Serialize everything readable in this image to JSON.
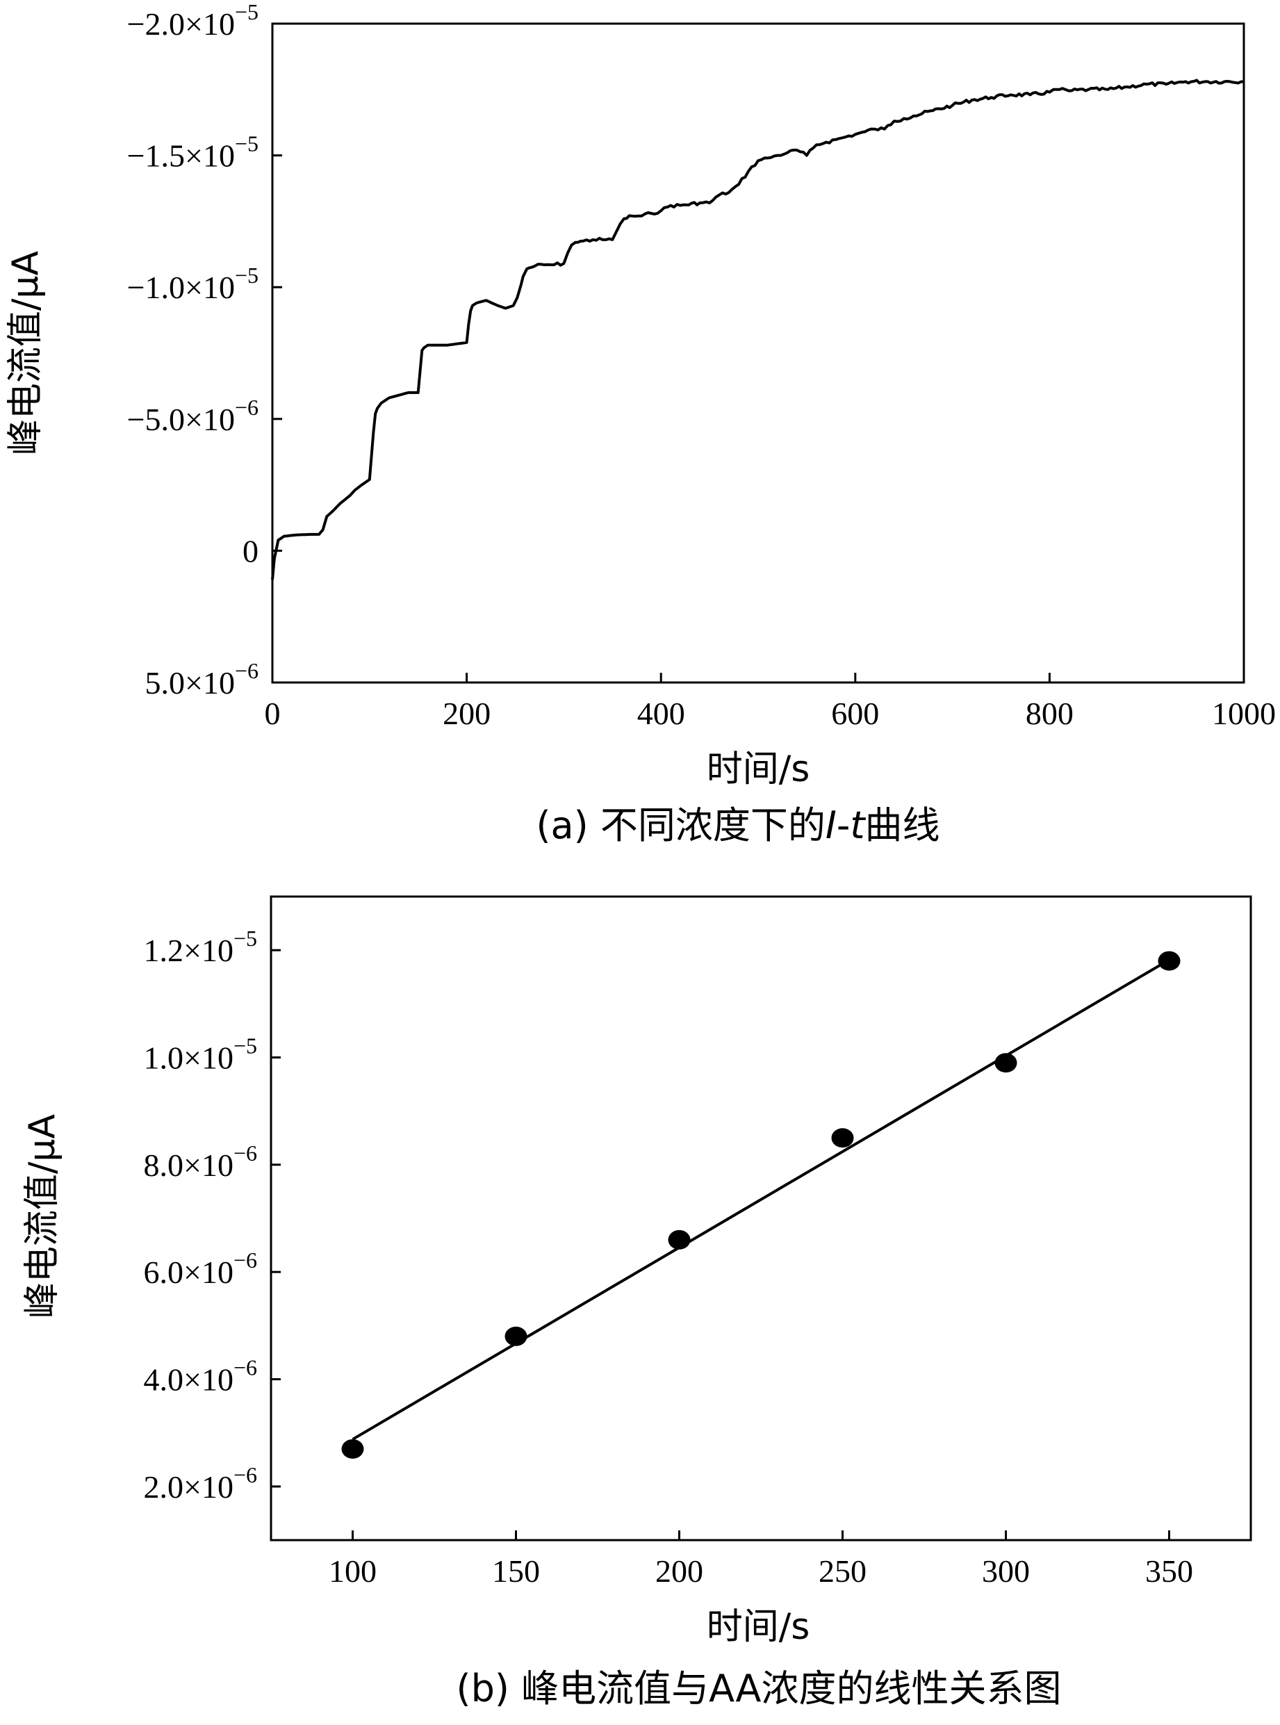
{
  "figure": {
    "captions": [
      {
        "prefix": "(a) 不同浓度下的",
        "italic_a": "I",
        "dash": "-",
        "italic_b": "t",
        "suffix": "曲线"
      },
      {
        "prefix": "(b) 峰电流值与AA浓度的线性关系图"
      }
    ]
  },
  "chart_data": [
    {
      "type": "line",
      "xlabel": "时间/s",
      "ylabel": "峰电流值/μA",
      "xlim": [
        0,
        1000
      ],
      "ylim_top_to_bottom": [
        -2e-05,
        5e-06
      ],
      "y_inverted": true,
      "x_ticks": [
        {
          "value": 0,
          "label": "0"
        },
        {
          "value": 200,
          "label": "200"
        },
        {
          "value": 400,
          "label": "400"
        },
        {
          "value": 600,
          "label": "600"
        },
        {
          "value": 800,
          "label": "800"
        },
        {
          "value": 1000,
          "label": "1000"
        }
      ],
      "y_ticks": [
        {
          "value": -2e-05,
          "mantissa": "−2.0×10",
          "exp": "−5"
        },
        {
          "value": -1.5e-05,
          "mantissa": "−1.5×10",
          "exp": "−5"
        },
        {
          "value": -1e-05,
          "mantissa": "−1.0×10",
          "exp": "−5"
        },
        {
          "value": -5e-06,
          "mantissa": "−5.0×10",
          "exp": "−6"
        },
        {
          "value": 0,
          "mantissa": "0",
          "exp": ""
        },
        {
          "value": 5e-06,
          "mantissa": "5.0×10",
          "exp": "−6"
        }
      ],
      "series": [
        {
          "x": [
            0,
            2,
            6,
            12,
            25,
            40,
            48,
            52,
            56,
            62,
            70,
            80,
            85,
            92,
            100,
            104,
            106,
            108,
            112,
            120,
            130,
            140,
            150,
            152,
            154,
            156,
            160,
            170,
            180,
            190,
            200,
            202,
            204,
            206,
            210,
            220,
            232,
            240,
            248,
            252,
            256,
            258,
            262,
            270,
            280,
            290,
            300,
            304,
            308,
            312,
            320,
            330,
            340,
            350,
            354,
            358,
            362,
            370,
            380,
            390,
            400,
            410,
            420,
            440,
            450,
            460,
            470,
            480,
            490,
            500,
            510,
            520,
            530,
            540,
            550,
            560,
            570,
            580,
            590,
            600,
            610,
            620,
            630,
            640,
            650,
            660,
            680,
            700,
            720,
            740,
            760,
            780,
            800,
            802,
            804,
            810,
            820,
            840,
            860,
            880,
            900,
            920,
            940,
            960,
            980,
            1000
          ],
          "y": [
            1.1e-06,
            3e-07,
            -4e-07,
            -5.5e-07,
            -6e-07,
            -6.2e-07,
            -6.2e-07,
            -8e-07,
            -1.3e-06,
            -1.5e-06,
            -1.8e-06,
            -2.1e-06,
            -2.3e-06,
            -2.5e-06,
            -2.7e-06,
            -4.5e-06,
            -5.2e-06,
            -5.4e-06,
            -5.6e-06,
            -5.8e-06,
            -5.9e-06,
            -6e-06,
            -6e-06,
            -6.8e-06,
            -7.6e-06,
            -7.7e-06,
            -7.8e-06,
            -7.8e-06,
            -7.8e-06,
            -7.85e-06,
            -7.9e-06,
            -8.6e-06,
            -9.1e-06,
            -9.3e-06,
            -9.4e-06,
            -9.5e-06,
            -9.3e-06,
            -9.2e-06,
            -9.3e-06,
            -9.6e-06,
            -1.01e-05,
            -1.04e-05,
            -1.07e-05,
            -1.08e-05,
            -1.085e-05,
            -1.085e-05,
            -1.09e-05,
            -1.13e-05,
            -1.16e-05,
            -1.17e-05,
            -1.175e-05,
            -1.18e-05,
            -1.18e-05,
            -1.18e-05,
            -1.21e-05,
            -1.24e-05,
            -1.26e-05,
            -1.27e-05,
            -1.27e-05,
            -1.28e-05,
            -1.29e-05,
            -1.31e-05,
            -1.31e-05,
            -1.32e-05,
            -1.32e-05,
            -1.35e-05,
            -1.36e-05,
            -1.39e-05,
            -1.44e-05,
            -1.48e-05,
            -1.49e-05,
            -1.5e-05,
            -1.51e-05,
            -1.52e-05,
            -1.5e-05,
            -1.54e-05,
            -1.55e-05,
            -1.56e-05,
            -1.57e-05,
            -1.58e-05,
            -1.59e-05,
            -1.6e-05,
            -1.6e-05,
            -1.63e-05,
            -1.64e-05,
            -1.65e-05,
            -1.67e-05,
            -1.69e-05,
            -1.71e-05,
            -1.72e-05,
            -1.73e-05,
            -1.73e-05,
            -1.74e-05,
            -1.745e-05,
            -1.75e-05,
            -1.75e-05,
            -1.745e-05,
            -1.75e-05,
            -1.75e-05,
            -1.76e-05,
            -1.77e-05,
            -1.77e-05,
            -1.78e-05,
            -1.78e-05,
            -1.78e-05,
            -1.78e-05
          ]
        }
      ]
    },
    {
      "type": "scatter",
      "xlabel": "时间/s",
      "ylabel": "峰电流值/μA",
      "xlim": [
        75,
        375
      ],
      "ylim": [
        1e-06,
        1.3e-05
      ],
      "x_ticks": [
        {
          "value": 100,
          "label": "100"
        },
        {
          "value": 150,
          "label": "150"
        },
        {
          "value": 200,
          "label": "200"
        },
        {
          "value": 250,
          "label": "250"
        },
        {
          "value": 300,
          "label": "300"
        },
        {
          "value": 350,
          "label": "350"
        }
      ],
      "y_ticks": [
        {
          "value": 2e-06,
          "mantissa": "2.0×10",
          "exp": "−6"
        },
        {
          "value": 4e-06,
          "mantissa": "4.0×10",
          "exp": "−6"
        },
        {
          "value": 6e-06,
          "mantissa": "6.0×10",
          "exp": "−6"
        },
        {
          "value": 8e-06,
          "mantissa": "8.0×10",
          "exp": "−6"
        },
        {
          "value": 1e-05,
          "mantissa": "1.0×10",
          "exp": "−5"
        },
        {
          "value": 1.2e-05,
          "mantissa": "1.2×10",
          "exp": "−5"
        }
      ],
      "points": {
        "x": [
          100,
          150,
          200,
          250,
          300,
          350
        ],
        "y": [
          2.7e-06,
          4.8e-06,
          6.6e-06,
          8.5e-06,
          9.9e-06,
          1.18e-05
        ]
      },
      "fit_line": {
        "x": [
          100,
          350
        ],
        "y": [
          2.88e-06,
          1.182e-05
        ]
      }
    }
  ]
}
